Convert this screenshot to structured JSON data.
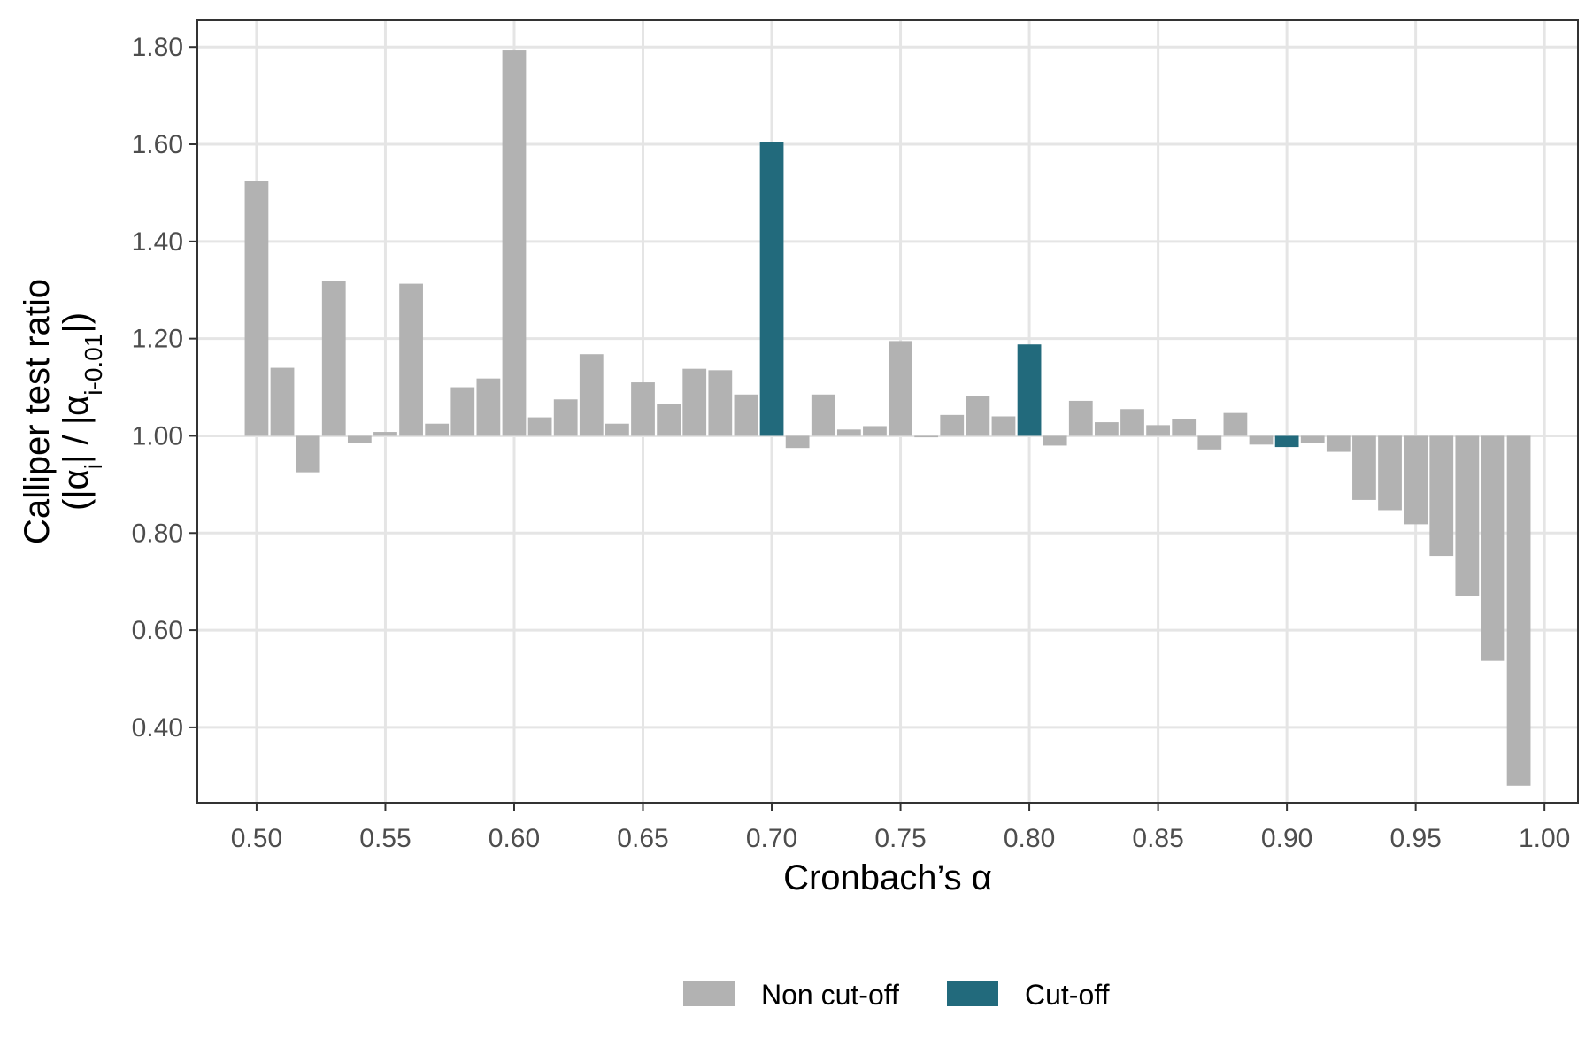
{
  "chart_data": {
    "type": "bar",
    "xlabel": "Cronbach’s α",
    "ylabel_line1": "Calliper test ratio",
    "ylabel_line2": {
      "open": "(|α",
      "sub1": "i",
      "mid": "| / |α",
      "sub2": "i-0.01",
      "close": "|)"
    },
    "baseline": 1.0,
    "xlim": [
      0.477,
      1.013
    ],
    "ylim": [
      0.245,
      1.855
    ],
    "x_ticks": [
      0.5,
      0.55,
      0.6,
      0.65,
      0.7,
      0.75,
      0.8,
      0.85,
      0.9,
      0.95,
      1.0
    ],
    "x_tick_labels": [
      "0.50",
      "0.55",
      "0.60",
      "0.65",
      "0.70",
      "0.75",
      "0.80",
      "0.85",
      "0.90",
      "0.95",
      "1.00"
    ],
    "y_ticks": [
      0.4,
      0.6,
      0.8,
      1.0,
      1.2,
      1.4,
      1.6,
      1.8
    ],
    "y_tick_labels": [
      "0.40",
      "0.60",
      "0.80",
      "1.00",
      "1.20",
      "1.40",
      "1.60",
      "1.80"
    ],
    "grid": true,
    "legend_position": "bottom",
    "colors": {
      "Non cut-off": "#b2b2b2",
      "Cut-off": "#226a7c"
    },
    "legend": [
      {
        "label": "Non cut-off",
        "color": "#b2b2b2"
      },
      {
        "label": "Cut-off",
        "color": "#226a7c"
      }
    ],
    "bars": [
      {
        "x": 0.5,
        "value": 1.525,
        "group": "Non cut-off"
      },
      {
        "x": 0.51,
        "value": 1.14,
        "group": "Non cut-off"
      },
      {
        "x": 0.52,
        "value": 0.925,
        "group": "Non cut-off"
      },
      {
        "x": 0.53,
        "value": 1.318,
        "group": "Non cut-off"
      },
      {
        "x": 0.54,
        "value": 0.985,
        "group": "Non cut-off"
      },
      {
        "x": 0.55,
        "value": 1.008,
        "group": "Non cut-off"
      },
      {
        "x": 0.56,
        "value": 1.313,
        "group": "Non cut-off"
      },
      {
        "x": 0.57,
        "value": 1.025,
        "group": "Non cut-off"
      },
      {
        "x": 0.58,
        "value": 1.1,
        "group": "Non cut-off"
      },
      {
        "x": 0.59,
        "value": 1.118,
        "group": "Non cut-off"
      },
      {
        "x": 0.6,
        "value": 1.793,
        "group": "Non cut-off"
      },
      {
        "x": 0.61,
        "value": 1.038,
        "group": "Non cut-off"
      },
      {
        "x": 0.62,
        "value": 1.075,
        "group": "Non cut-off"
      },
      {
        "x": 0.63,
        "value": 1.168,
        "group": "Non cut-off"
      },
      {
        "x": 0.64,
        "value": 1.025,
        "group": "Non cut-off"
      },
      {
        "x": 0.65,
        "value": 1.11,
        "group": "Non cut-off"
      },
      {
        "x": 0.66,
        "value": 1.065,
        "group": "Non cut-off"
      },
      {
        "x": 0.67,
        "value": 1.138,
        "group": "Non cut-off"
      },
      {
        "x": 0.68,
        "value": 1.135,
        "group": "Non cut-off"
      },
      {
        "x": 0.69,
        "value": 1.085,
        "group": "Non cut-off"
      },
      {
        "x": 0.7,
        "value": 1.605,
        "group": "Cut-off"
      },
      {
        "x": 0.71,
        "value": 0.975,
        "group": "Non cut-off"
      },
      {
        "x": 0.72,
        "value": 1.085,
        "group": "Non cut-off"
      },
      {
        "x": 0.73,
        "value": 1.013,
        "group": "Non cut-off"
      },
      {
        "x": 0.74,
        "value": 1.02,
        "group": "Non cut-off"
      },
      {
        "x": 0.75,
        "value": 1.195,
        "group": "Non cut-off"
      },
      {
        "x": 0.76,
        "value": 0.997,
        "group": "Non cut-off"
      },
      {
        "x": 0.77,
        "value": 1.043,
        "group": "Non cut-off"
      },
      {
        "x": 0.78,
        "value": 1.082,
        "group": "Non cut-off"
      },
      {
        "x": 0.79,
        "value": 1.04,
        "group": "Non cut-off"
      },
      {
        "x": 0.8,
        "value": 1.188,
        "group": "Cut-off"
      },
      {
        "x": 0.81,
        "value": 0.98,
        "group": "Non cut-off"
      },
      {
        "x": 0.82,
        "value": 1.072,
        "group": "Non cut-off"
      },
      {
        "x": 0.83,
        "value": 1.028,
        "group": "Non cut-off"
      },
      {
        "x": 0.84,
        "value": 1.055,
        "group": "Non cut-off"
      },
      {
        "x": 0.85,
        "value": 1.022,
        "group": "Non cut-off"
      },
      {
        "x": 0.86,
        "value": 1.035,
        "group": "Non cut-off"
      },
      {
        "x": 0.87,
        "value": 0.972,
        "group": "Non cut-off"
      },
      {
        "x": 0.88,
        "value": 1.047,
        "group": "Non cut-off"
      },
      {
        "x": 0.89,
        "value": 0.982,
        "group": "Non cut-off"
      },
      {
        "x": 0.9,
        "value": 0.977,
        "group": "Cut-off"
      },
      {
        "x": 0.91,
        "value": 0.985,
        "group": "Non cut-off"
      },
      {
        "x": 0.92,
        "value": 0.967,
        "group": "Non cut-off"
      },
      {
        "x": 0.93,
        "value": 0.868,
        "group": "Non cut-off"
      },
      {
        "x": 0.94,
        "value": 0.847,
        "group": "Non cut-off"
      },
      {
        "x": 0.95,
        "value": 0.818,
        "group": "Non cut-off"
      },
      {
        "x": 0.96,
        "value": 0.753,
        "group": "Non cut-off"
      },
      {
        "x": 0.97,
        "value": 0.67,
        "group": "Non cut-off"
      },
      {
        "x": 0.98,
        "value": 0.537,
        "group": "Non cut-off"
      },
      {
        "x": 0.99,
        "value": 0.28,
        "group": "Non cut-off"
      }
    ]
  }
}
